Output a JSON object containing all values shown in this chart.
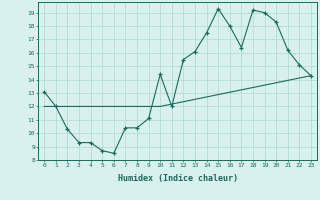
{
  "title": "",
  "xlabel": "Humidex (Indice chaleur)",
  "bg_color": "#d8f0ee",
  "line_color": "#1a6b5a",
  "grid_color": "#b0d8d0",
  "xlim": [
    -0.5,
    23.5
  ],
  "ylim": [
    8,
    19.8
  ],
  "yticks": [
    8,
    9,
    10,
    11,
    12,
    13,
    14,
    15,
    16,
    17,
    18,
    19
  ],
  "xticks": [
    0,
    1,
    2,
    3,
    4,
    5,
    6,
    7,
    8,
    9,
    10,
    11,
    12,
    13,
    14,
    15,
    16,
    17,
    18,
    19,
    20,
    21,
    22,
    23
  ],
  "xtick_labels": [
    "0",
    "1",
    "2",
    "3",
    "4",
    "5",
    "6",
    "7",
    "8",
    "9",
    "10",
    "11",
    "12",
    "13",
    "14",
    "15",
    "16",
    "17",
    "18",
    "19",
    "20",
    "21",
    "22",
    "23"
  ],
  "line1_x": [
    0,
    1,
    2,
    3,
    4,
    5,
    6,
    7,
    8,
    9,
    10,
    11,
    12,
    13,
    14,
    15,
    16,
    17,
    18,
    19,
    20,
    21,
    22,
    23
  ],
  "line1_y": [
    13.1,
    12.0,
    10.3,
    9.3,
    9.3,
    8.7,
    8.5,
    10.4,
    10.4,
    11.1,
    14.4,
    12.0,
    15.5,
    16.1,
    17.5,
    19.3,
    18.0,
    16.4,
    19.2,
    19.0,
    18.3,
    16.2,
    15.1,
    14.3
  ],
  "line2_x": [
    0,
    10,
    23
  ],
  "line2_y": [
    12.0,
    12.0,
    14.3
  ]
}
